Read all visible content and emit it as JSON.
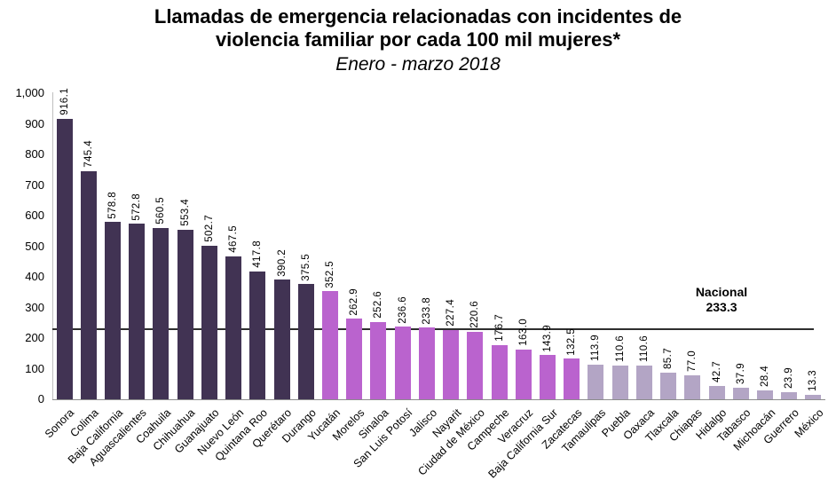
{
  "header": {
    "title_line1": "Llamadas de emergencia relacionadas con incidentes de",
    "title_line2": "violencia familiar por cada 100 mil mujeres*",
    "subtitle": "Enero - marzo 2018"
  },
  "chart_data": {
    "type": "bar",
    "title": "Llamadas de emergencia relacionadas con incidentes de violencia familiar por cada 100 mil mujeres*",
    "subtitle": "Enero - marzo 2018",
    "categories": [
      "Sonora",
      "Colima",
      "Baja California",
      "Aguascalientes",
      "Coahuila",
      "Chihuahua",
      "Guanajuato",
      "Nuevo León",
      "Quintana Roo",
      "Querétaro",
      "Durango",
      "Yucatán",
      "Morelos",
      "Sinaloa",
      "San Luis Potosí",
      "Jalisco",
      "Nayarit",
      "Ciudad de México",
      "Campeche",
      "Veracruz",
      "Baja California Sur",
      "Zacatecas",
      "Tamaulipas",
      "Puebla",
      "Oaxaca",
      "Tlaxcala",
      "Chiapas",
      "Hidalgo",
      "Tabasco",
      "Michoacán",
      "Guerrero",
      "México"
    ],
    "values": [
      916.1,
      745.4,
      578.8,
      572.8,
      560.5,
      553.4,
      502.7,
      467.5,
      417.8,
      390.2,
      375.5,
      352.5,
      262.9,
      252.6,
      236.6,
      233.8,
      227.4,
      220.6,
      176.7,
      163.0,
      143.9,
      132.5,
      113.9,
      110.6,
      110.6,
      85.7,
      77.0,
      42.7,
      37.9,
      28.4,
      23.9,
      13.3
    ],
    "value_labels": [
      "916.1",
      "745.4",
      "578.8",
      "572.8",
      "560.5",
      "553.4",
      "502.7",
      "467.5",
      "417.8",
      "390.2",
      "375.5",
      "352.5",
      "262.9",
      "252.6",
      "236.6",
      "233.8",
      "227.4",
      "220.6",
      "176.7",
      "163.0",
      "143.9",
      "132.5",
      "113.9",
      "110.6",
      "110.6",
      "85.7",
      "77.0",
      "42.7",
      "37.9",
      "28.4",
      "23.9",
      "13.3"
    ],
    "groups": [
      {
        "name": "grupo-alto",
        "color": "#413353",
        "from": 0,
        "to": 10
      },
      {
        "name": "grupo-medio",
        "color": "#BA63CE",
        "from": 11,
        "to": 21
      },
      {
        "name": "grupo-bajo",
        "color": "#B3A5C5",
        "from": 22,
        "to": 31
      }
    ],
    "reference_line": {
      "label": "Nacional",
      "value": 233.3,
      "value_label": "233.3"
    },
    "ylim": [
      0,
      1000
    ],
    "ytick_step": 100,
    "ytick_labels": [
      "0",
      "100",
      "200",
      "300",
      "400",
      "500",
      "600",
      "700",
      "800",
      "900",
      "1,000"
    ],
    "xlabel": "",
    "ylabel": "",
    "grid": false,
    "legend": "none",
    "value_labels_rotated": true,
    "xtick_rotation_deg": 45
  },
  "colors": {
    "bar_dark": "#413353",
    "bar_magenta": "#BA63CE",
    "bar_light": "#B3A5C5",
    "y_axis": "#BFBFBF",
    "x_axis": "#8C8C8C",
    "reference_line": "#2E2E2E",
    "text": "#000000",
    "background": "#FFFFFF"
  }
}
